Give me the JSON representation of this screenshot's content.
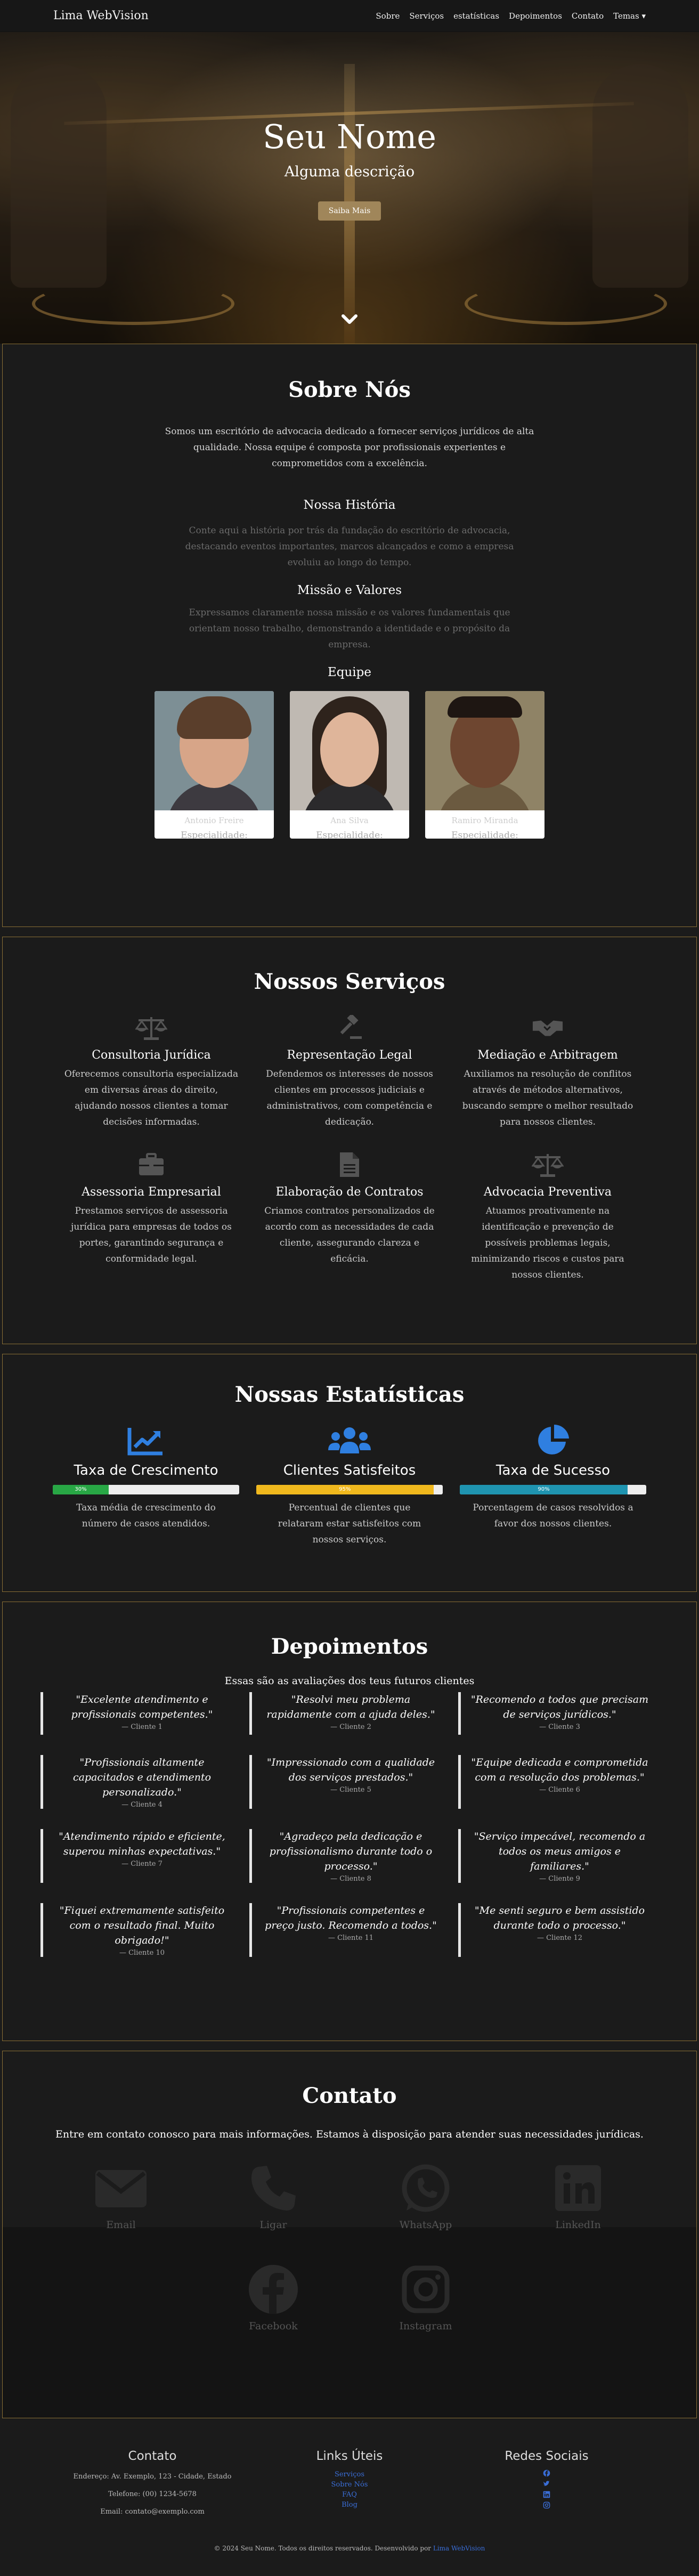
{
  "nav": {
    "brand": "Lima WebVision",
    "links": [
      "Sobre",
      "Serviços",
      "estatísticas",
      "Depoimentos",
      "Contato",
      "Temas ▾"
    ]
  },
  "hero": {
    "title": "Seu Nome",
    "subtitle": "Alguma descrição",
    "button": "Saiba Mais"
  },
  "about": {
    "title": "Sobre Nós",
    "intro": "Somos um escritório de advocacia dedicado a fornecer serviços jurídicos de alta qualidade. Nossa equipe é composta por profissionais experientes e comprometidos com a excelência.",
    "history_title": "Nossa História",
    "history_text": "Conte aqui a história por trás da fundação do escritório de advocacia, destacando eventos importantes, marcos alcançados e como a empresa evoluiu ao longo do tempo.",
    "mission_title": "Missão e Valores",
    "mission_text": "Expressamos claramente nossa missão e os valores fundamentais que orientam nosso trabalho, demonstrando a identidade e o propósito da empresa.",
    "team_title": "Equipe",
    "team": [
      {
        "name": "Antonio Freire",
        "spec": "Especialidade: Criminalista"
      },
      {
        "name": "Ana Silva",
        "spec": "Especialidade: Trabalhista"
      },
      {
        "name": "Ramiro Miranda",
        "spec": "Especialidade: Digital/Influencers"
      }
    ]
  },
  "services": {
    "title": "Nossos Serviços",
    "items": [
      {
        "icon": "scale-icon",
        "title": "Consultoria Jurídica",
        "text": "Oferecemos consultoria especializada em diversas áreas do direito, ajudando nossos clientes a tomar decisões informadas."
      },
      {
        "icon": "gavel-icon",
        "title": "Representação Legal",
        "text": "Defendemos os interesses de nossos clientes em processos judiciais e administrativos, com competência e dedicação."
      },
      {
        "icon": "handshake-icon",
        "title": "Mediação e Arbitragem",
        "text": "Auxiliamos na resolução de conflitos através de métodos alternativos, buscando sempre o melhor resultado para nossos clientes."
      },
      {
        "icon": "briefcase-icon",
        "title": "Assessoria Empresarial",
        "text": "Prestamos serviços de assessoria jurídica para empresas de todos os portes, garantindo segurança e conformidade legal."
      },
      {
        "icon": "document-icon",
        "title": "Elaboração de Contratos",
        "text": "Criamos contratos personalizados de acordo com as necessidades de cada cliente, assegurando clareza e eficácia."
      },
      {
        "icon": "scale-icon",
        "title": "Advocacia Preventiva",
        "text": "Atuamos proativamente na identificação e prevenção de possíveis problemas legais, minimizando riscos e custos para nossos clientes."
      }
    ]
  },
  "stats": {
    "title": "Nossas Estatísticas",
    "items": [
      {
        "icon": "chart-line-icon",
        "title": "Taxa de Crescimento",
        "percent": 30,
        "label": "30%",
        "color": "#28a745",
        "text": "Taxa média de crescimento do número de casos atendidos."
      },
      {
        "icon": "users-icon",
        "title": "Clientes Satisfeitos",
        "percent": 95,
        "label": "95%",
        "color": "#f0b81d",
        "text": "Percentual de clientes que relataram estar satisfeitos com nossos serviços."
      },
      {
        "icon": "pie-chart-icon",
        "title": "Taxa de Sucesso",
        "percent": 90,
        "label": "90%",
        "color": "#1f94b0",
        "text": "Porcentagem de casos resolvidos a favor dos nossos clientes."
      }
    ]
  },
  "testimonials": {
    "title": "Depoimentos",
    "intro": "Essas são as avaliações dos teus futuros clientes",
    "items": [
      {
        "quote": "\"Excelente atendimento e profissionais competentes.\"",
        "author": "— Cliente 1"
      },
      {
        "quote": "\"Resolvi meu problema rapidamente com a ajuda deles.\"",
        "author": "— Cliente 2"
      },
      {
        "quote": "\"Recomendo a todos que precisam de serviços jurídicos.\"",
        "author": "— Cliente 3"
      },
      {
        "quote": "\"Profissionais altamente capacitados e atendimento personalizado.\"",
        "author": "— Cliente 4"
      },
      {
        "quote": "\"Impressionado com a qualidade dos serviços prestados.\"",
        "author": "— Cliente 5"
      },
      {
        "quote": "\"Equipe dedicada e comprometida com a resolução dos problemas.\"",
        "author": "— Cliente 6"
      },
      {
        "quote": "\"Atendimento rápido e eficiente, superou minhas expectativas.\"",
        "author": "— Cliente 7"
      },
      {
        "quote": "\"Agradeço pela dedicação e profissionalismo durante todo o processo.\"",
        "author": "— Cliente 8"
      },
      {
        "quote": "\"Serviço impecável, recomendo a todos os meus amigos e familiares.\"",
        "author": "— Cliente 9"
      },
      {
        "quote": "\"Fiquei extremamente satisfeito com o resultado final. Muito obrigado!\"",
        "author": "— Cliente 10"
      },
      {
        "quote": "\"Profissionais competentes e preço justo. Recomendo a todos.\"",
        "author": "— Cliente 11"
      },
      {
        "quote": "\"Me senti seguro e bem assistido durante todo o processo.\"",
        "author": "— Cliente 12"
      }
    ]
  },
  "contact": {
    "title": "Contato",
    "intro": "Entre em contato conosco para mais informações. Estamos à disposição para atender suas necessidades jurídicas.",
    "channels": [
      {
        "icon": "envelope-icon",
        "label": "Email"
      },
      {
        "icon": "phone-icon",
        "label": "Ligar"
      },
      {
        "icon": "whatsapp-icon",
        "label": "WhatsApp"
      },
      {
        "icon": "linkedin-icon",
        "label": "LinkedIn"
      },
      {
        "icon": "facebook-icon",
        "label": "Facebook"
      },
      {
        "icon": "instagram-icon",
        "label": "Instagram"
      }
    ]
  },
  "footer": {
    "contact_title": "Contato",
    "address": "Endereço: Av. Exemplo, 123 - Cidade, Estado",
    "phone": "Telefone: (00) 1234-5678",
    "email": "Email: contato@exemplo.com",
    "links_title": "Links Úteis",
    "links": [
      "Serviços",
      "Sobre Nós",
      "FAQ",
      "Blog"
    ],
    "social_title": "Redes Sociais",
    "copyright": "© 2024 Seu Nome. Todos os direitos reservados. Desenvolvido por",
    "developer": "Lima WebVision",
    "accent": "#3a6ed8"
  }
}
